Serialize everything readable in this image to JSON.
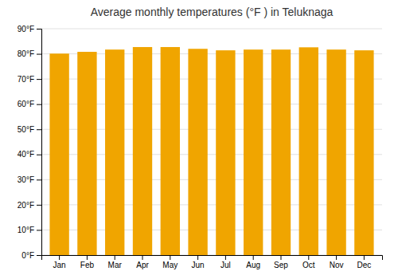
{
  "chart_data": {
    "type": "bar",
    "title": "Average monthly temperatures (°F ) in Teluknaga",
    "categories": [
      "Jan",
      "Feb",
      "Mar",
      "Apr",
      "May",
      "Jun",
      "Jul",
      "Aug",
      "Sep",
      "Oct",
      "Nov",
      "Dec"
    ],
    "values": [
      80.1,
      80.8,
      81.7,
      82.7,
      82.7,
      82.0,
      81.4,
      81.7,
      81.7,
      82.6,
      81.7,
      81.4
    ],
    "color": "#F0A500",
    "ylim": [
      0,
      90
    ],
    "yticks": [
      {
        "value": 0,
        "label": "0°F"
      },
      {
        "value": 10,
        "label": "10°F"
      },
      {
        "value": 20,
        "label": "20°F"
      },
      {
        "value": 30,
        "label": "30°F"
      },
      {
        "value": 40,
        "label": "40°F"
      },
      {
        "value": 50,
        "label": "50°F"
      },
      {
        "value": 60,
        "label": "60°F"
      },
      {
        "value": 70,
        "label": "70°F"
      },
      {
        "value": 80,
        "label": "80°F"
      },
      {
        "value": 90,
        "label": "90°F"
      }
    ],
    "grid": true
  }
}
